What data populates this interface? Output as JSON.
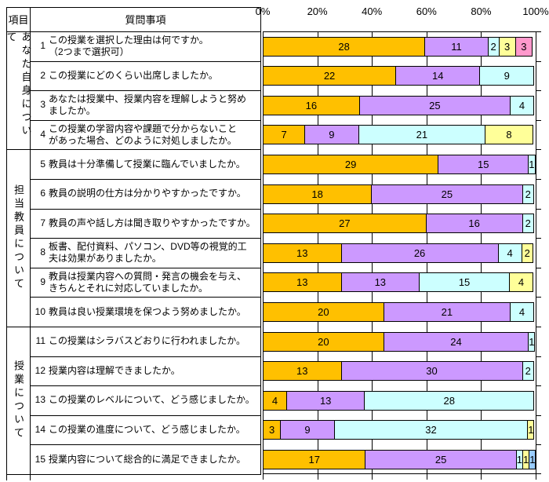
{
  "table": {
    "header": {
      "item": "項目",
      "question": "質問事項"
    },
    "categories": [
      {
        "label": "あなた自身について",
        "row_start": 0,
        "row_end": 4
      },
      {
        "label": "担当教員について",
        "row_start": 4,
        "row_end": 10
      },
      {
        "label": "授業について",
        "row_start": 10,
        "row_end": 15
      }
    ],
    "questions": [
      {
        "no": "1",
        "lines": [
          "この授業を選択した理由は何ですか。",
          "（2つまで選択可）"
        ]
      },
      {
        "no": "2",
        "lines": [
          "この授業にどのくらい出席しましたか。"
        ]
      },
      {
        "no": "3",
        "lines": [
          "あなたは授業中、授業内容を理解しようと努め",
          "ましたか。"
        ]
      },
      {
        "no": "4",
        "lines": [
          "この授業の学習内容や課題で分からないこと",
          "があった場合、どのように対処しましたか。"
        ]
      },
      {
        "no": "5",
        "lines": [
          "教員は十分準備して授業に臨んでいましたか。"
        ]
      },
      {
        "no": "6",
        "lines": [
          "教員の説明の仕方は分かりやすかったですか。"
        ]
      },
      {
        "no": "7",
        "lines": [
          "教員の声や話し方は聞き取りやすかったですか。"
        ]
      },
      {
        "no": "8",
        "lines": [
          "板書、配付資料、パソコン、DVD等の視覚的工",
          "夫は効果がありましたか。"
        ]
      },
      {
        "no": "9",
        "lines": [
          "教員は授業内容への質問・発言の機会を与え、",
          "きちんとそれに対応していましたか。"
        ]
      },
      {
        "no": "10",
        "lines": [
          "教員は良い授業環境を保つよう努めましたか。"
        ]
      },
      {
        "no": "11",
        "lines": [
          "この授業はシラバスどおりに行われましたか。"
        ]
      },
      {
        "no": "12",
        "lines": [
          "授業内容は理解できましたか。"
        ]
      },
      {
        "no": "13",
        "lines": [
          "この授業のレベルについて、どう感じましたか。"
        ]
      },
      {
        "no": "14",
        "lines": [
          "この授業の進度について、どう感じましたか。"
        ]
      },
      {
        "no": "15",
        "lines": [
          "授業内容について総合的に満足できましたか。"
        ]
      }
    ]
  },
  "chart_data": {
    "type": "bar",
    "subtype": "horizontal-stacked-100percent",
    "value_axis": {
      "position": "top",
      "range": [
        0,
        100
      ],
      "ticks": [
        "0%",
        "20%",
        "40%",
        "60%",
        "80%",
        "100%"
      ]
    },
    "grid": true,
    "palette": {
      "c1": "#FFC000",
      "c2": "#CC99FF",
      "c3": "#CCFFFF",
      "c4": "#FFFF99",
      "c5": "#FF99CC",
      "c6": "#99CCFF"
    },
    "rows": [
      {
        "question_no": "1",
        "total": 47,
        "segments": [
          {
            "c": "c1",
            "v": 28
          },
          {
            "c": "c2",
            "v": 11
          },
          {
            "c": "c3",
            "v": 2
          },
          {
            "c": "c4",
            "v": 3
          },
          {
            "c": "c5",
            "v": 3
          }
        ]
      },
      {
        "question_no": "2",
        "total": 45,
        "segments": [
          {
            "c": "c1",
            "v": 22
          },
          {
            "c": "c2",
            "v": 14
          },
          {
            "c": "c3",
            "v": 9
          }
        ]
      },
      {
        "question_no": "3",
        "total": 45,
        "segments": [
          {
            "c": "c1",
            "v": 16
          },
          {
            "c": "c2",
            "v": 25
          },
          {
            "c": "c3",
            "v": 4
          }
        ]
      },
      {
        "question_no": "4",
        "total": 45,
        "segments": [
          {
            "c": "c1",
            "v": 7
          },
          {
            "c": "c2",
            "v": 9
          },
          {
            "c": "c3",
            "v": 21
          },
          {
            "c": "c4",
            "v": 8
          }
        ]
      },
      {
        "question_no": "5",
        "total": 45,
        "segments": [
          {
            "c": "c1",
            "v": 29
          },
          {
            "c": "c2",
            "v": 15
          },
          {
            "c": "c3",
            "v": 1
          }
        ]
      },
      {
        "question_no": "6",
        "total": 45,
        "segments": [
          {
            "c": "c1",
            "v": 18
          },
          {
            "c": "c2",
            "v": 25
          },
          {
            "c": "c3",
            "v": 2
          }
        ]
      },
      {
        "question_no": "7",
        "total": 45,
        "segments": [
          {
            "c": "c1",
            "v": 27
          },
          {
            "c": "c2",
            "v": 16
          },
          {
            "c": "c3",
            "v": 2
          }
        ]
      },
      {
        "question_no": "8",
        "total": 45,
        "segments": [
          {
            "c": "c1",
            "v": 13
          },
          {
            "c": "c2",
            "v": 26
          },
          {
            "c": "c3",
            "v": 4
          },
          {
            "c": "c4",
            "v": 2
          }
        ]
      },
      {
        "question_no": "9",
        "total": 45,
        "segments": [
          {
            "c": "c1",
            "v": 13
          },
          {
            "c": "c2",
            "v": 13
          },
          {
            "c": "c3",
            "v": 15
          },
          {
            "c": "c4",
            "v": 4
          }
        ]
      },
      {
        "question_no": "10",
        "total": 45,
        "segments": [
          {
            "c": "c1",
            "v": 20
          },
          {
            "c": "c2",
            "v": 21
          },
          {
            "c": "c3",
            "v": 4
          }
        ]
      },
      {
        "question_no": "11",
        "total": 45,
        "segments": [
          {
            "c": "c1",
            "v": 20
          },
          {
            "c": "c2",
            "v": 24
          },
          {
            "c": "c3",
            "v": 1
          }
        ]
      },
      {
        "question_no": "12",
        "total": 45,
        "segments": [
          {
            "c": "c1",
            "v": 13
          },
          {
            "c": "c2",
            "v": 30
          },
          {
            "c": "c3",
            "v": 2
          }
        ]
      },
      {
        "question_no": "13",
        "total": 45,
        "segments": [
          {
            "c": "c1",
            "v": 4
          },
          {
            "c": "c2",
            "v": 13
          },
          {
            "c": "c3",
            "v": 28
          }
        ]
      },
      {
        "question_no": "14",
        "total": 45,
        "segments": [
          {
            "c": "c1",
            "v": 3
          },
          {
            "c": "c2",
            "v": 9
          },
          {
            "c": "c3",
            "v": 32
          },
          {
            "c": "c4",
            "v": 1
          }
        ]
      },
      {
        "question_no": "15",
        "total": 45,
        "segments": [
          {
            "c": "c1",
            "v": 17
          },
          {
            "c": "c2",
            "v": 25
          },
          {
            "c": "c3",
            "v": 1
          },
          {
            "c": "c4",
            "v": 1
          },
          {
            "c": "c6",
            "v": 1
          }
        ]
      }
    ]
  }
}
